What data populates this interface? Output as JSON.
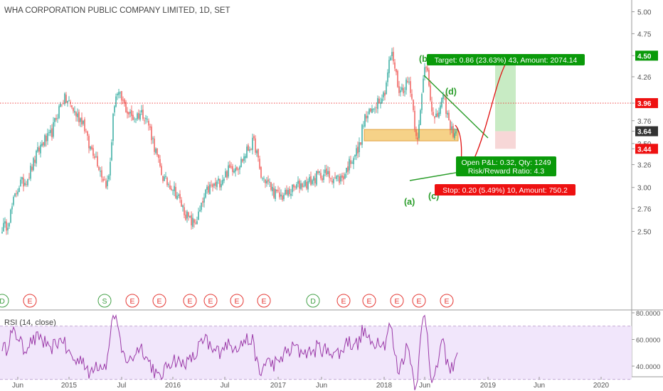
{
  "header": {
    "title": "WHA CORPORATION PUBLIC COMPANY LIMITED, 1D, SET"
  },
  "rsi_label": "RSI (14, close)",
  "colors": {
    "up": "#26a69a",
    "down": "#ef5350",
    "wave": "#2a9d2a",
    "target_bg": "#0a9a0a",
    "stop_bg": "#ee1111",
    "profit_zone": "#c8ebc4",
    "support_zone": "#f6d288",
    "rsi_line": "#9b3aa8",
    "rsi_band": "#f1e6fb"
  },
  "chart_data": [
    {
      "type": "candlestick",
      "title": "WHA CORPORATION PUBLIC COMPANY LIMITED, 1D, SET",
      "price_axis": {
        "ticks": [
          "5.00",
          "4.75",
          "4.50",
          "4.26",
          "3.96",
          "3.76",
          "3.64",
          "3.50",
          "3.44",
          "3.26",
          "3.00",
          "2.76",
          "2.50"
        ]
      },
      "time_axis": {
        "ticks": [
          "Jun",
          "2015",
          "Jul",
          "2016",
          "Jul",
          "2017",
          "Jun",
          "2018",
          "Jun",
          "2019",
          "Jun",
          "2020"
        ]
      },
      "key_levels": {
        "target": 4.5,
        "last_price": 3.96,
        "entry": 3.64,
        "stop": 3.44
      },
      "path_anchors": [
        {
          "date": "2014-04",
          "close": 2.55
        },
        {
          "date": "2014-06",
          "close": 3.05
        },
        {
          "date": "2014-09",
          "close": 3.55
        },
        {
          "date": "2014-11",
          "close": 4.0
        },
        {
          "date": "2015-01",
          "close": 3.78
        },
        {
          "date": "2015-02",
          "close": 3.45
        },
        {
          "date": "2015-04",
          "close": 3.05
        },
        {
          "date": "2015-05",
          "close": 4.05
        },
        {
          "date": "2015-07",
          "close": 3.8
        },
        {
          "date": "2015-08",
          "close": 3.85
        },
        {
          "date": "2015-11",
          "close": 3.05
        },
        {
          "date": "2016-02",
          "close": 2.6
        },
        {
          "date": "2016-04",
          "close": 3.0
        },
        {
          "date": "2016-07",
          "close": 3.25
        },
        {
          "date": "2016-09",
          "close": 3.5
        },
        {
          "date": "2016-10",
          "close": 3.1
        },
        {
          "date": "2016-12",
          "close": 2.9
        },
        {
          "date": "2017-03",
          "close": 3.05
        },
        {
          "date": "2017-05",
          "close": 3.15
        },
        {
          "date": "2017-07",
          "close": 3.1
        },
        {
          "date": "2017-09",
          "close": 3.4
        },
        {
          "date": "2017-10",
          "close": 3.8
        },
        {
          "date": "2017-12",
          "close": 4.05
        },
        {
          "date": "2018-01",
          "close": 4.5
        },
        {
          "date": "2018-02",
          "close": 4.1
        },
        {
          "date": "2018-03",
          "close": 4.2
        },
        {
          "date": "2018-04",
          "close": 3.6
        },
        {
          "date": "2018-05",
          "close": 4.4
        },
        {
          "date": "2018-06",
          "close": 3.75
        },
        {
          "date": "2018-07",
          "close": 4.0
        },
        {
          "date": "2018-08",
          "close": 3.64
        }
      ],
      "annotations": {
        "wave_labels": [
          "(a)",
          "(b)",
          "(c)",
          "(d)"
        ],
        "target_label": "Target: 0.86 (23.63%) 43, Amount: 2074.14",
        "position_label": "Open P&L: 0.32, Qty: 1249",
        "rr_label": "Risk/Reward Ratio: 4.3",
        "stop_label": "Stop: 0.20 (5.49%) 10, Amount: 750.2"
      },
      "events": [
        "D",
        "E",
        "E",
        "S",
        "E",
        "E",
        "E",
        "E",
        "E",
        "E",
        "D",
        "E",
        "E",
        "E",
        "E",
        "E",
        "E"
      ]
    },
    {
      "type": "line",
      "title": "RSI (14, close)",
      "ylim": [
        20,
        80
      ],
      "y_ticks": [
        "80.0000",
        "60.0000",
        "40.0000",
        "20.0000"
      ],
      "band": [
        30,
        70
      ],
      "range_observed": [
        22,
        78
      ]
    }
  ]
}
